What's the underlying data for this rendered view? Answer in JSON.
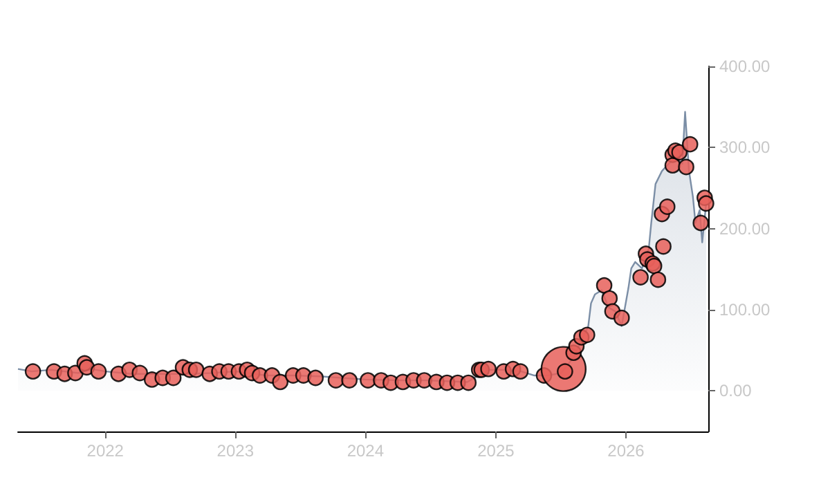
{
  "chart_data": {
    "type": "area",
    "xlim": [
      "2021-05-01",
      "2026-08-20"
    ],
    "xticks": [
      "2022",
      "2023",
      "2024",
      "2025",
      "2026"
    ],
    "ylim": [
      -50,
      400
    ],
    "yticks": [
      {
        "value": 0,
        "label": "0.00"
      },
      {
        "value": 100,
        "label": "100.00"
      },
      {
        "value": 200,
        "label": "200.00"
      },
      {
        "value": 300,
        "label": "300.00"
      },
      {
        "value": 400,
        "label": "400.00"
      }
    ],
    "series": [
      {
        "color": "#7b8ea6",
        "x": [
          "2021-05-01",
          "2021-06-08",
          "2021-08-03",
          "2021-10-17",
          "2021-11-23",
          "2022-01-01",
          "2022-03-17",
          "2022-05-31",
          "2022-08-14",
          "2022-10-28",
          "2023-01-01",
          "2023-03-29",
          "2023-06-12",
          "2023-08-26",
          "2024-01-01",
          "2024-04-08",
          "2024-06-22",
          "2024-10-13",
          "2024-11-20",
          "2024-12-09",
          "2025-02-04",
          "2025-03-13",
          "2025-04-19",
          "2025-05-27",
          "2025-07-03",
          "2025-08-10",
          "2025-08-29",
          "2025-09-17",
          "2025-09-25",
          "2025-10-06",
          "2025-10-25",
          "2025-11-13",
          "2025-12-02",
          "2025-12-20",
          "2026-01-08",
          "2026-01-16",
          "2026-01-27",
          "2026-02-15",
          "2026-03-06",
          "2026-03-13",
          "2026-03-25",
          "2026-04-12",
          "2026-05-01",
          "2026-05-20",
          "2026-06-08",
          "2026-06-16",
          "2026-06-27",
          "2026-07-08",
          "2026-07-15",
          "2026-07-27",
          "2026-08-03",
          "2026-08-14"
        ],
        "values": [
          27,
          24,
          26,
          22,
          27,
          24,
          21,
          21,
          21,
          22,
          24,
          19,
          19,
          18,
          14,
          13,
          13,
          11,
          21,
          26,
          26,
          24,
          19,
          19,
          22,
          43,
          63,
          79,
          108,
          119,
          124,
          103,
          98,
          80,
          127,
          151,
          159,
          151,
          175,
          207,
          255,
          271,
          280,
          288,
          280,
          344,
          271,
          239,
          207,
          223,
          183,
          231
        ]
      },
      {
        "type": "bubble",
        "color": "#e8605a",
        "x": [
          "2021-06-12",
          "2021-08-10",
          "2021-09-09",
          "2021-10-09",
          "2021-11-04",
          "2021-11-10",
          "2021-12-13",
          "2022-02-07",
          "2022-03-10",
          "2022-04-08",
          "2022-05-12",
          "2022-06-11",
          "2022-07-11",
          "2022-08-07",
          "2022-08-26",
          "2022-09-13",
          "2022-10-21",
          "2022-11-17",
          "2022-12-13",
          "2023-01-11",
          "2023-02-03",
          "2023-02-17",
          "2023-03-11",
          "2023-04-14",
          "2023-05-07",
          "2023-06-12",
          "2023-07-11",
          "2023-08-14",
          "2023-10-10",
          "2023-11-17",
          "2024-01-08",
          "2024-02-14",
          "2024-03-12",
          "2024-04-15",
          "2024-05-15",
          "2024-06-14",
          "2024-07-18",
          "2024-08-17",
          "2024-09-16",
          "2024-10-16",
          "2024-11-15",
          "2024-11-22",
          "2024-12-11",
          "2025-01-23",
          "2025-02-18",
          "2025-03-11",
          "2025-05-16",
          "2025-07-10",
          "2025-07-14",
          "2025-08-07",
          "2025-08-15",
          "2025-08-29",
          "2025-09-14",
          "2025-11-01",
          "2025-11-16",
          "2025-11-24",
          "2025-12-20",
          "2026-02-11",
          "2026-02-26",
          "2026-03-02",
          "2026-03-17",
          "2026-03-21",
          "2026-04-01",
          "2026-04-12",
          "2026-04-16",
          "2026-04-27",
          "2026-05-12",
          "2026-05-12",
          "2026-05-20",
          "2026-05-31",
          "2026-06-19",
          "2026-06-30",
          "2026-07-30",
          "2026-08-10",
          "2026-08-14"
        ],
        "values": [
          24,
          24,
          21,
          22,
          34,
          29,
          24,
          21,
          26,
          22,
          14,
          16,
          16,
          29,
          26,
          26,
          21,
          24,
          24,
          24,
          26,
          22,
          19,
          19,
          11,
          19,
          19,
          16,
          13,
          13,
          13,
          13,
          10,
          11,
          13,
          13,
          11,
          10,
          10,
          10,
          26,
          26,
          27,
          24,
          27,
          24,
          19,
          27,
          24,
          47,
          55,
          66,
          69,
          130,
          114,
          98,
          90,
          140,
          169,
          162,
          157,
          154,
          137,
          218,
          178,
          227,
          291,
          278,
          296,
          294,
          276,
          304,
          207,
          238,
          231
        ],
        "sizes": [
          0.11,
          0.11,
          0.11,
          0.11,
          0.11,
          0.11,
          0.11,
          0.11,
          0.11,
          0.11,
          0.11,
          0.11,
          0.11,
          0.11,
          0.11,
          0.11,
          0.11,
          0.11,
          0.11,
          0.11,
          0.11,
          0.11,
          0.11,
          0.11,
          0.11,
          0.11,
          0.11,
          0.11,
          0.11,
          0.11,
          0.11,
          0.11,
          0.11,
          0.11,
          0.11,
          0.11,
          0.11,
          0.11,
          0.11,
          0.11,
          0.11,
          0.11,
          0.11,
          0.11,
          0.11,
          0.11,
          0.11,
          1,
          0.11,
          0.11,
          0.11,
          0.11,
          0.11,
          0.11,
          0.11,
          0.11,
          0.11,
          0.11,
          0.11,
          0.11,
          0.11,
          0.11,
          0.11,
          0.11,
          0.11,
          0.11,
          0.11,
          0.11,
          0.11,
          0.11,
          0.11,
          0.11,
          0.11,
          0.11,
          0.11
        ]
      }
    ]
  }
}
